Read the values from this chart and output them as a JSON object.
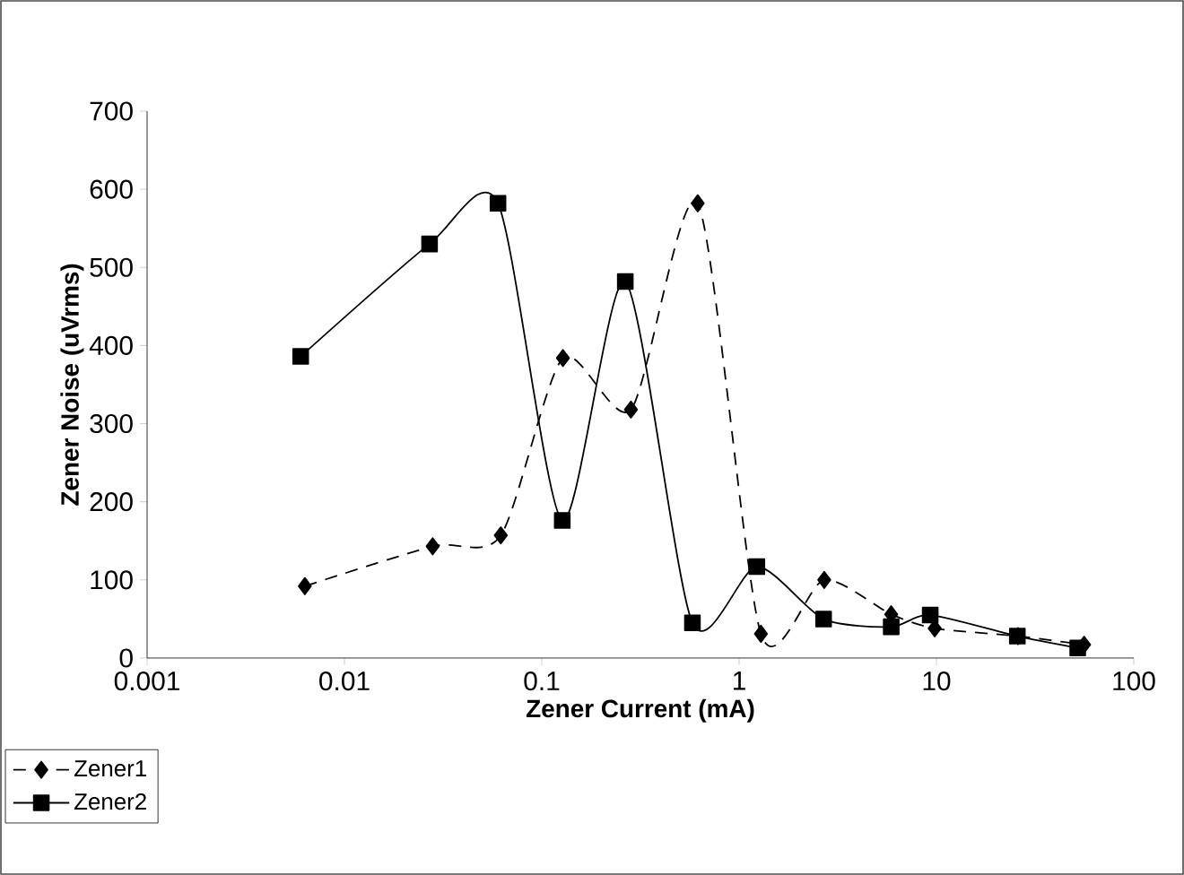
{
  "chart_data": {
    "type": "line",
    "xlabel": "Zener Current (mA)",
    "ylabel": "Zener Noise (uVrms)",
    "log": "x",
    "xlim": [
      0.001,
      100
    ],
    "xticks": [
      0.001,
      0.01,
      0.1,
      1,
      10,
      100
    ],
    "ylim": [
      0,
      700
    ],
    "yticks": [
      0,
      100,
      200,
      300,
      400,
      500,
      600,
      700
    ],
    "grid": false,
    "legend": "bottom left",
    "series": [
      {
        "name": "Zener1",
        "color": "#000000",
        "marker": "diamond",
        "line_style": "dashed",
        "x": [
          0.0063,
          0.028,
          0.062,
          0.128,
          0.283,
          0.617,
          1.29,
          2.7,
          5.9,
          9.8,
          25.9,
          56
        ],
        "values": [
          92,
          143,
          157,
          384,
          318,
          582,
          31,
          100,
          56,
          38,
          28,
          17
        ]
      },
      {
        "name": "Zener2",
        "color": "#000000",
        "marker": "square",
        "line_style": "solid",
        "x": [
          0.006,
          0.027,
          0.06,
          0.127,
          0.265,
          0.58,
          1.23,
          2.68,
          5.9,
          9.3,
          25.7,
          52
        ],
        "values": [
          386,
          530,
          582,
          176,
          482,
          45,
          117,
          50,
          40,
          55,
          28,
          13
        ]
      }
    ]
  }
}
